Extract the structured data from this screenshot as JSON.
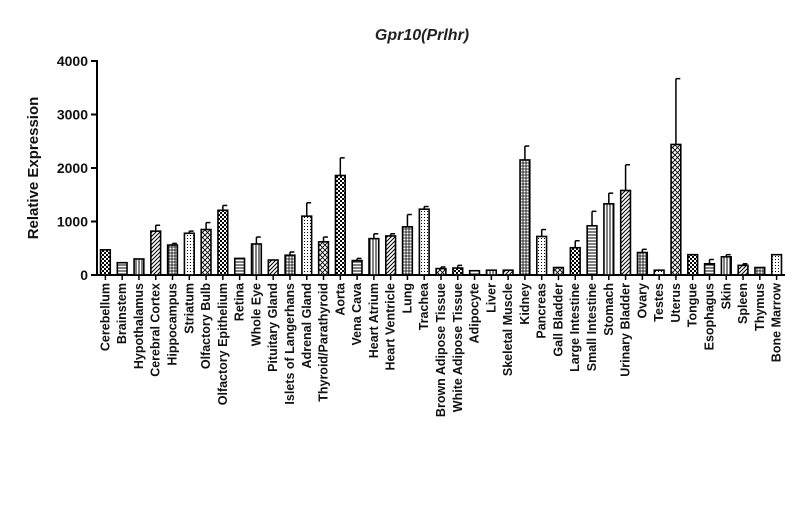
{
  "chart_data": {
    "type": "bar",
    "title": "Gpr10(Prlhr)",
    "ylabel": "Relative Expression",
    "xlabel": "",
    "ylim": [
      0,
      4000
    ],
    "yticks": [
      0,
      1000,
      2000,
      3000,
      4000
    ],
    "yticklabels": [
      "0",
      "1000",
      "2000",
      "3000",
      "4000"
    ],
    "grid": false,
    "legend": "none",
    "error_bars": true,
    "bar_color": "#000000",
    "categories": [
      "Cerebellum",
      "Brainstem",
      "Hypothalamus",
      "Cerebral Cortex",
      "Hippocampus",
      "Striatum",
      "Olfactory Bulb",
      "Olfactory Epithelium",
      "Retina",
      "Whole Eye",
      "Pituitary Gland",
      "Islets of Langerhans",
      "Adrenal Gland",
      "Thyroid/Parathyroid",
      "Aorta",
      "Vena Cava",
      "Heart Atrium",
      "Heart Ventricle",
      "Lung",
      "Trachea",
      "Brown Adipose Tissue",
      "White Adipose Tissue",
      "Adipocyte",
      "Liver",
      "Skeletal Muscle",
      "Kidney",
      "Pancreas",
      "Gall Bladder",
      "Large Intestine",
      "Small Intestine",
      "Stomach",
      "Urinary Bladder",
      "Ovary",
      "Testes",
      "Uterus",
      "Tongue",
      "Esophagus",
      "Skin",
      "Spleen",
      "Thymus",
      "Bone Marrow"
    ],
    "values": [
      470,
      230,
      300,
      820,
      560,
      780,
      850,
      1210,
      310,
      580,
      280,
      370,
      1100,
      620,
      1860,
      270,
      680,
      730,
      900,
      1230,
      120,
      130,
      80,
      90,
      90,
      2150,
      720,
      140,
      510,
      920,
      1330,
      1580,
      420,
      90,
      2440,
      380,
      210,
      340,
      180,
      140,
      380
    ],
    "errors": [
      0,
      0,
      0,
      110,
      30,
      40,
      130,
      90,
      0,
      130,
      0,
      60,
      250,
      90,
      330,
      40,
      90,
      40,
      230,
      50,
      30,
      50,
      0,
      0,
      0,
      260,
      130,
      0,
      130,
      270,
      200,
      480,
      60,
      0,
      1230,
      0,
      80,
      40,
      30,
      0,
      0
    ]
  }
}
